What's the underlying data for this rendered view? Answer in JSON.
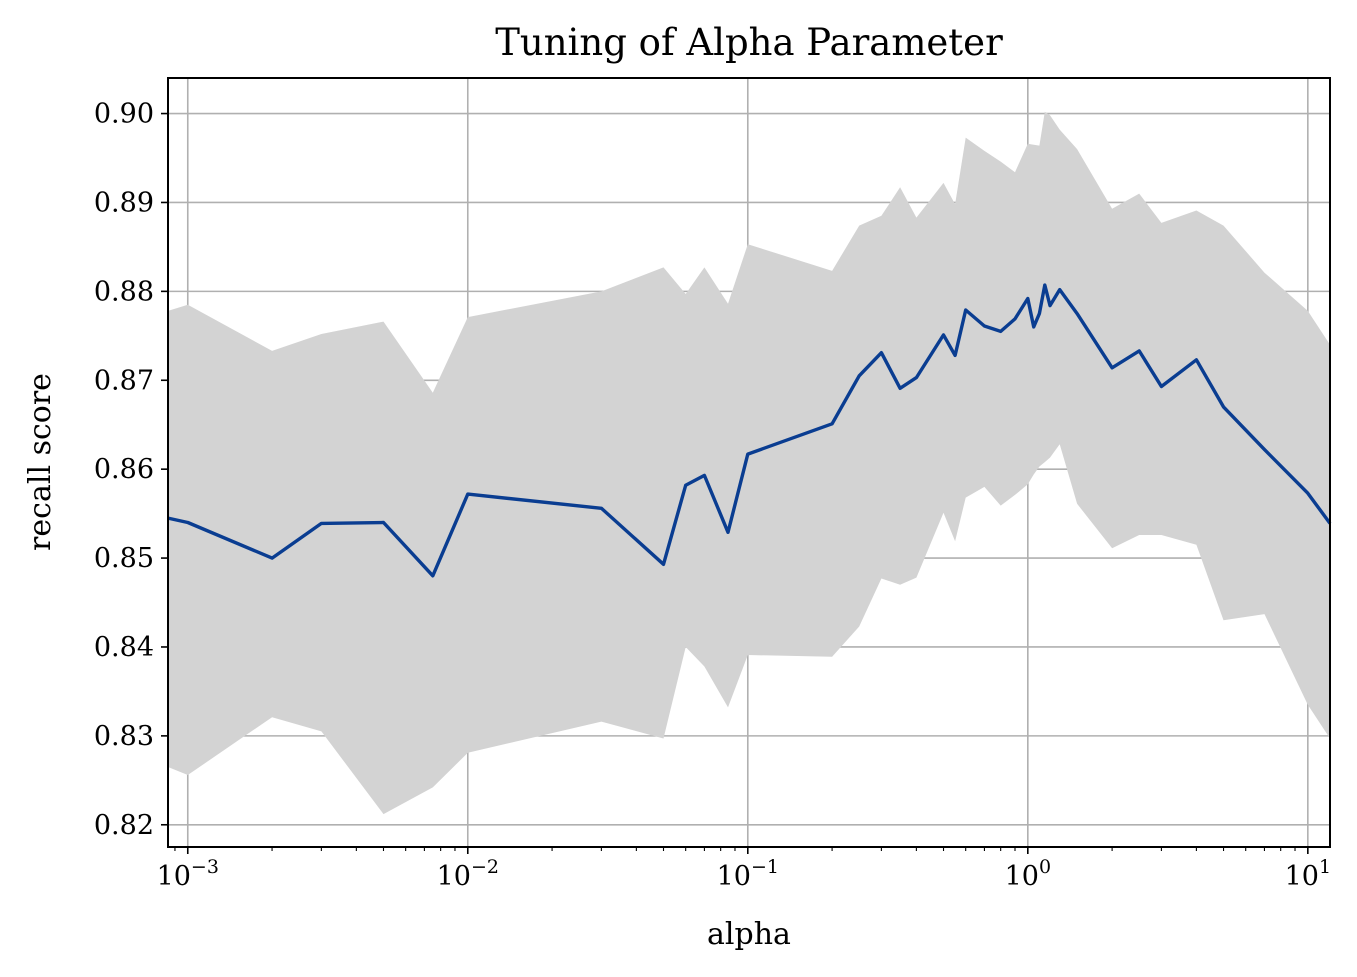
{
  "chart_data": {
    "type": "line",
    "title": "Tuning of Alpha Parameter",
    "xlabel": "alpha",
    "ylabel": "recall score",
    "xscale": "log",
    "xlim": [
      0.00085,
      12
    ],
    "ylim": [
      0.8175,
      0.904
    ],
    "grid": true,
    "legend": false,
    "x_ticks": [
      {
        "value": 0.001,
        "base": "10",
        "exp": "−3"
      },
      {
        "value": 0.01,
        "base": "10",
        "exp": "−2"
      },
      {
        "value": 0.1,
        "base": "10",
        "exp": "−1"
      },
      {
        "value": 1,
        "base": "10",
        "exp": "0"
      },
      {
        "value": 10,
        "base": "10",
        "exp": "1"
      }
    ],
    "y_ticks": [
      {
        "value": 0.82,
        "label": "0.82"
      },
      {
        "value": 0.83,
        "label": "0.83"
      },
      {
        "value": 0.84,
        "label": "0.84"
      },
      {
        "value": 0.85,
        "label": "0.85"
      },
      {
        "value": 0.86,
        "label": "0.86"
      },
      {
        "value": 0.87,
        "label": "0.87"
      },
      {
        "value": 0.88,
        "label": "0.88"
      },
      {
        "value": 0.89,
        "label": "0.89"
      },
      {
        "value": 0.9,
        "label": "0.90"
      }
    ],
    "colors": {
      "line": "#0a3d91",
      "band": "#d3d3d3",
      "grid": "#b0b0b0"
    },
    "series": [
      {
        "x": [
          0.00085,
          0.001,
          0.002,
          0.003,
          0.005,
          0.0075,
          0.01,
          0.03,
          0.05,
          0.06,
          0.07,
          0.085,
          0.1,
          0.2,
          0.25,
          0.3,
          0.35,
          0.4,
          0.5,
          0.55,
          0.6,
          0.7,
          0.8,
          0.9,
          1.0,
          1.05,
          1.1,
          1.15,
          1.2,
          1.3,
          1.5,
          2.0,
          2.5,
          3.0,
          4.0,
          5.0,
          7.0,
          10.0,
          12.0
        ],
        "y": [
          0.8545,
          0.854,
          0.85,
          0.8539,
          0.854,
          0.848,
          0.8572,
          0.8556,
          0.8493,
          0.8582,
          0.8593,
          0.8529,
          0.8617,
          0.8651,
          0.8705,
          0.8731,
          0.8691,
          0.8703,
          0.8751,
          0.8728,
          0.8779,
          0.8761,
          0.8755,
          0.8769,
          0.8792,
          0.876,
          0.8775,
          0.8807,
          0.8784,
          0.8802,
          0.8775,
          0.8714,
          0.8733,
          0.8693,
          0.8723,
          0.867,
          0.8622,
          0.8573,
          0.8539
        ],
        "upper": [
          0.8778,
          0.8785,
          0.8733,
          0.8752,
          0.8766,
          0.8686,
          0.8771,
          0.88,
          0.8827,
          0.8797,
          0.8827,
          0.8786,
          0.8853,
          0.8823,
          0.8874,
          0.8885,
          0.8917,
          0.8883,
          0.8922,
          0.8898,
          0.8973,
          0.8958,
          0.8946,
          0.8934,
          0.8966,
          0.8965,
          0.8964,
          0.9002,
          0.8998,
          0.8982,
          0.896,
          0.8893,
          0.891,
          0.8877,
          0.8891,
          0.8874,
          0.8821,
          0.8778,
          0.874
        ],
        "lower": [
          0.8265,
          0.8256,
          0.8321,
          0.8305,
          0.8212,
          0.8242,
          0.8281,
          0.8316,
          0.8297,
          0.84,
          0.8378,
          0.8332,
          0.8391,
          0.8389,
          0.8423,
          0.8477,
          0.847,
          0.8478,
          0.8551,
          0.8519,
          0.8568,
          0.858,
          0.8559,
          0.8571,
          0.8583,
          0.8594,
          0.8603,
          0.8608,
          0.8613,
          0.8628,
          0.8561,
          0.8511,
          0.8526,
          0.8526,
          0.8515,
          0.843,
          0.8437,
          0.8335,
          0.8297
        ]
      }
    ]
  }
}
